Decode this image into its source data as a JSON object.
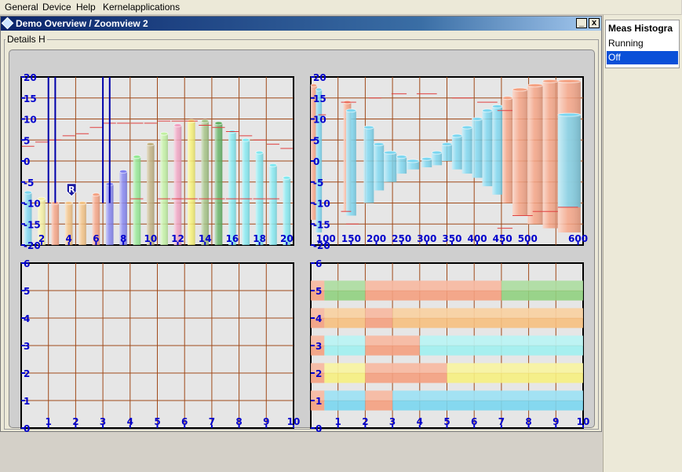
{
  "menu": {
    "items": [
      "General",
      "Device",
      "Help",
      "Kernelapplications"
    ]
  },
  "window": {
    "title": "Demo Overview / Zoomview 2",
    "minimize_label": "_",
    "close_label": "x",
    "group_label": "Details H"
  },
  "meas_histogram": {
    "title": "Meas Histogra",
    "items": [
      {
        "label": "Running",
        "selected": false
      },
      {
        "label": "Off",
        "selected": true
      }
    ]
  },
  "colors": {
    "grid": "#a04a1a",
    "axis_label": "#0000cc",
    "red_line": "#e04040",
    "title_bar": "#0a246a"
  },
  "chart_data": [
    {
      "type": "bar",
      "y_ticks": [
        20,
        15,
        10,
        5,
        0,
        -5,
        -10,
        -15,
        -20
      ],
      "ylim": [
        -20,
        20
      ],
      "x_ticks": [
        "2",
        "4",
        "6",
        "8",
        "10",
        "12",
        "14",
        "16",
        "18",
        "20"
      ],
      "xlim": [
        0.5,
        20.5
      ],
      "bars": [
        {
          "x": 1,
          "top": -7.5,
          "color": "#7ad6f0"
        },
        {
          "x": 2,
          "top": -9,
          "color": "#f6f0a0"
        },
        {
          "x": 3,
          "top": -10,
          "color": "#f4a080"
        },
        {
          "x": 4,
          "top": -10,
          "color": "#f2c080"
        },
        {
          "x": 5,
          "top": -10,
          "color": "#f2c080"
        },
        {
          "x": 6,
          "top": -8,
          "color": "#f4a080"
        },
        {
          "x": 7,
          "top": -5.5,
          "color": "#8080f0"
        },
        {
          "x": 8,
          "top": -2.5,
          "color": "#8080f0"
        },
        {
          "x": 9,
          "top": 1,
          "color": "#90e890"
        },
        {
          "x": 10,
          "top": 4,
          "color": "#c0b080"
        },
        {
          "x": 11,
          "top": 6.5,
          "color": "#c0f0a0"
        },
        {
          "x": 12,
          "top": 8.5,
          "color": "#f0a0c0"
        },
        {
          "x": 13,
          "top": 9.5,
          "color": "#f6f070"
        },
        {
          "x": 14,
          "top": 9.5,
          "color": "#a0c080"
        },
        {
          "x": 15,
          "top": 9,
          "color": "#60b060"
        },
        {
          "x": 16,
          "top": 7,
          "color": "#80e8f0"
        },
        {
          "x": 17,
          "top": 5,
          "color": "#80e8f0"
        },
        {
          "x": 18,
          "top": 2,
          "color": "#80e8f0"
        },
        {
          "x": 19,
          "top": -1,
          "color": "#80e8f0"
        },
        {
          "x": 20,
          "top": -4,
          "color": "#80e8f0"
        }
      ],
      "markers": [
        {
          "x": 1,
          "y": 3.5
        },
        {
          "x": 2,
          "y": 4.5
        },
        {
          "x": 3,
          "y": 5
        },
        {
          "x": 4,
          "y": 6
        },
        {
          "x": 5,
          "y": 6.5
        },
        {
          "x": 6,
          "y": 8
        },
        {
          "x": 7,
          "y": 9
        },
        {
          "x": 8,
          "y": 9
        },
        {
          "x": 9,
          "y": 9
        },
        {
          "x": 10,
          "y": 9
        },
        {
          "x": 11,
          "y": 9.5
        },
        {
          "x": 12,
          "y": 9.5
        },
        {
          "x": 13,
          "y": 9.5
        },
        {
          "x": 14,
          "y": 8.5
        },
        {
          "x": 15,
          "y": 8
        },
        {
          "x": 16,
          "y": 7
        },
        {
          "x": 17,
          "y": 6
        },
        {
          "x": 18,
          "y": 5
        },
        {
          "x": 19,
          "y": 4
        },
        {
          "x": 20,
          "y": 3
        },
        {
          "x": 12,
          "y": -9
        },
        {
          "x": 13,
          "y": -9
        },
        {
          "x": 14,
          "y": -9
        },
        {
          "x": 15,
          "y": -9
        },
        {
          "x": 16,
          "y": -9
        },
        {
          "x": 17,
          "y": -9
        },
        {
          "x": 18,
          "y": -9
        },
        {
          "x": 19,
          "y": -9
        },
        {
          "x": 11,
          "y": -9
        },
        {
          "x": 9,
          "y": -9
        }
      ],
      "vlines": [
        2.5,
        3,
        6.5,
        7
      ],
      "r_marker": {
        "x": 4.2,
        "y": -8,
        "label": "R"
      }
    },
    {
      "type": "bar",
      "y_ticks": [
        20,
        15,
        10,
        5,
        0,
        -5,
        -10,
        -15,
        -20
      ],
      "ylim": [
        -20,
        20
      ],
      "x_ticks": [
        "100",
        "150",
        "200",
        "250",
        "300",
        "350",
        "400",
        "450",
        "500",
        "600"
      ],
      "x_tick_values": [
        100,
        150,
        200,
        250,
        300,
        350,
        400,
        450,
        500,
        600
      ],
      "xlim": [
        70,
        610
      ],
      "bars": [
        {
          "x0": 70,
          "x1": 82,
          "lo": -14,
          "hi": 18,
          "color": "#f4a080"
        },
        {
          "x0": 80,
          "x1": 92,
          "lo": -17,
          "hi": 17,
          "color": "#7ad6f0"
        },
        {
          "x0": 135,
          "x1": 150,
          "lo": -12,
          "hi": 14,
          "color": "#f4a080"
        },
        {
          "x0": 140,
          "x1": 160,
          "lo": -13,
          "hi": 12,
          "color": "#7ad6f0"
        },
        {
          "x0": 175,
          "x1": 195,
          "lo": -10,
          "hi": 8,
          "color": "#7ad6f0"
        },
        {
          "x0": 195,
          "x1": 215,
          "lo": -7,
          "hi": 4,
          "color": "#7ad6f0"
        },
        {
          "x0": 215,
          "x1": 240,
          "lo": -5,
          "hi": 2,
          "color": "#7ad6f0"
        },
        {
          "x0": 240,
          "x1": 260,
          "lo": -3,
          "hi": 1,
          "color": "#7ad6f0"
        },
        {
          "x0": 260,
          "x1": 285,
          "lo": -2,
          "hi": 0,
          "color": "#7ad6f0"
        },
        {
          "x0": 290,
          "x1": 310,
          "lo": -1.5,
          "hi": 0.5,
          "color": "#7ad6f0"
        },
        {
          "x0": 310,
          "x1": 330,
          "lo": -1,
          "hi": 2,
          "color": "#7ad6f0"
        },
        {
          "x0": 330,
          "x1": 350,
          "lo": 0,
          "hi": 4,
          "color": "#7ad6f0"
        },
        {
          "x0": 350,
          "x1": 370,
          "lo": -2,
          "hi": 6,
          "color": "#7ad6f0"
        },
        {
          "x0": 370,
          "x1": 390,
          "lo": -3,
          "hi": 8,
          "color": "#7ad6f0"
        },
        {
          "x0": 390,
          "x1": 410,
          "lo": -4,
          "hi": 10,
          "color": "#7ad6f0"
        },
        {
          "x0": 410,
          "x1": 430,
          "lo": -6,
          "hi": 12,
          "color": "#7ad6f0"
        },
        {
          "x0": 430,
          "x1": 450,
          "lo": -8,
          "hi": 13,
          "color": "#7ad6f0"
        },
        {
          "x0": 450,
          "x1": 470,
          "lo": -10,
          "hi": 15,
          "color": "#f4a080"
        },
        {
          "x0": 470,
          "x1": 500,
          "lo": -13,
          "hi": 17,
          "color": "#f4a080"
        },
        {
          "x0": 500,
          "x1": 530,
          "lo": -15,
          "hi": 18,
          "color": "#f4a080"
        },
        {
          "x0": 530,
          "x1": 560,
          "lo": -16,
          "hi": 19,
          "color": "#f4a080"
        },
        {
          "x0": 560,
          "x1": 605,
          "lo": -17,
          "hi": 19,
          "color": "#f4a080"
        },
        {
          "x0": 560,
          "x1": 605,
          "lo": -11,
          "hi": 11,
          "color": "#7ad6f0"
        }
      ],
      "markers": [
        {
          "x0": 130,
          "x1": 160,
          "y": 14
        },
        {
          "x0": 185,
          "x1": 210,
          "y": 15
        },
        {
          "x0": 230,
          "x1": 260,
          "y": 16
        },
        {
          "x0": 280,
          "x1": 320,
          "y": 16
        },
        {
          "x0": 350,
          "x1": 390,
          "y": 15
        },
        {
          "x0": 400,
          "x1": 440,
          "y": 14
        },
        {
          "x0": 440,
          "x1": 470,
          "y": 12
        },
        {
          "x0": 440,
          "x1": 470,
          "y": -16
        },
        {
          "x0": 470,
          "x1": 510,
          "y": -13
        },
        {
          "x0": 510,
          "x1": 560,
          "y": -12
        },
        {
          "x0": 560,
          "x1": 600,
          "y": -11
        },
        {
          "x0": 85,
          "x1": 100,
          "y": 11
        },
        {
          "x0": 130,
          "x1": 150,
          "y": -12
        },
        {
          "x0": 140,
          "x1": 165,
          "y": -15
        }
      ]
    },
    {
      "type": "scatter",
      "y_ticks": [
        6,
        5,
        4,
        3,
        2,
        1,
        0
      ],
      "ylim": [
        0,
        6
      ],
      "x_ticks": [
        "1",
        "2",
        "3",
        "4",
        "5",
        "6",
        "7",
        "8",
        "9",
        "10"
      ],
      "xlim": [
        0,
        10
      ],
      "points": []
    },
    {
      "type": "bar",
      "y_ticks": [
        6,
        5,
        4,
        3,
        2,
        1,
        0
      ],
      "ylim": [
        0,
        6
      ],
      "x_ticks": [
        "0",
        "1",
        "2",
        "3",
        "4",
        "5",
        "6",
        "7",
        "8",
        "9",
        "10"
      ],
      "xlim": [
        0,
        10
      ],
      "rows": [
        {
          "level": 5,
          "segments": [
            {
              "x0": 0,
              "x1": 0.5,
              "color": "#f4a080"
            },
            {
              "x0": 0.5,
              "x1": 2,
              "color": "#90d080"
            },
            {
              "x0": 2,
              "x1": 7,
              "color": "#f4a080"
            },
            {
              "x0": 7,
              "x1": 10,
              "color": "#90d080"
            }
          ]
        },
        {
          "level": 4,
          "segments": [
            {
              "x0": 0,
              "x1": 0.5,
              "color": "#f4a080"
            },
            {
              "x0": 0.5,
              "x1": 2,
              "color": "#f6c080"
            },
            {
              "x0": 2,
              "x1": 3,
              "color": "#f4a080"
            },
            {
              "x0": 3,
              "x1": 10,
              "color": "#f6c080"
            }
          ]
        },
        {
          "level": 3,
          "segments": [
            {
              "x0": 0,
              "x1": 0.5,
              "color": "#f4a080"
            },
            {
              "x0": 0.5,
              "x1": 2,
              "color": "#a0f0f0"
            },
            {
              "x0": 2,
              "x1": 4,
              "color": "#f4a080"
            },
            {
              "x0": 4,
              "x1": 10,
              "color": "#a0f0f0"
            }
          ]
        },
        {
          "level": 2,
          "segments": [
            {
              "x0": 0,
              "x1": 0.5,
              "color": "#f4a080"
            },
            {
              "x0": 0.5,
              "x1": 2,
              "color": "#f6f080"
            },
            {
              "x0": 2,
              "x1": 5,
              "color": "#f4a080"
            },
            {
              "x0": 5,
              "x1": 10,
              "color": "#f6f080"
            }
          ]
        },
        {
          "level": 1,
          "segments": [
            {
              "x0": 0,
              "x1": 0.5,
              "color": "#f4a080"
            },
            {
              "x0": 0.5,
              "x1": 2,
              "color": "#7ad6f0"
            },
            {
              "x0": 2,
              "x1": 3,
              "color": "#f4a080"
            },
            {
              "x0": 3,
              "x1": 10,
              "color": "#7ad6f0"
            }
          ]
        }
      ]
    }
  ]
}
